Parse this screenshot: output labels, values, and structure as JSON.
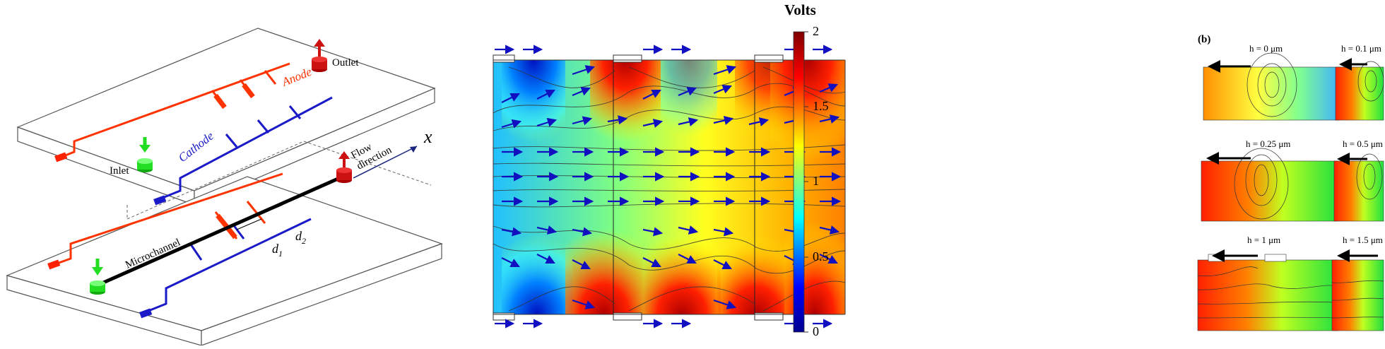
{
  "device": {
    "labels": {
      "outlet": "Outlet",
      "anode": "Anode",
      "inlet": "Inlet",
      "cathode": "Cathode",
      "flow_direction_1": "Flow",
      "flow_direction_2": "direction",
      "x_axis": "x",
      "microchannel": "Microchannel",
      "d1": "d",
      "d1_sub": "1",
      "d2": "d",
      "d2_sub": "2"
    },
    "colors": {
      "anode": "#ff3300",
      "cathode": "#1a1ac8",
      "inlet_marker": "#22dd22",
      "outlet_marker": "#cc1111"
    }
  },
  "field_plot": {
    "colorbar_title": "Volts",
    "colorbar_ticks": [
      "2",
      "1.5",
      "1",
      "0.5",
      "0"
    ],
    "colormap": [
      "#00008f",
      "#0000ff",
      "#00ffff",
      "#ffff00",
      "#ff0000",
      "#800000"
    ]
  },
  "panel_b": {
    "label": "(b)",
    "insets": [
      {
        "caption": "h = 0 μm"
      },
      {
        "caption": "h = 0.1 μm"
      },
      {
        "caption": "h = 0.25 μm"
      },
      {
        "caption": "h = 0.5 μm"
      },
      {
        "caption": "h = 1 μm"
      },
      {
        "caption": "h = 1.5 μm"
      }
    ]
  }
}
